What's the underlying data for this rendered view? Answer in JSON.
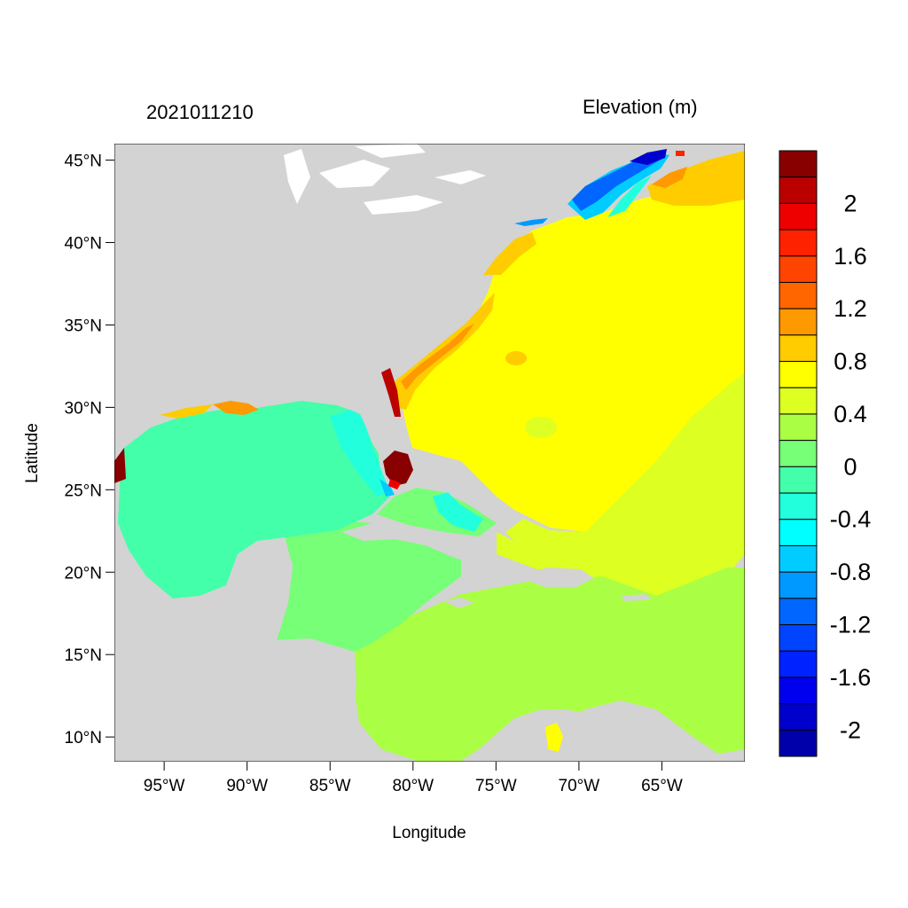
{
  "header": {
    "date_label": "2021011210",
    "variable_label": "Elevation (m)"
  },
  "map": {
    "xlabel": "Longitude",
    "ylabel": "Latitude",
    "lon_range": [
      -98,
      -60
    ],
    "lat_range": [
      8.5,
      46
    ],
    "lon_ticks": [
      {
        "value": -95,
        "label": "95°W"
      },
      {
        "value": -90,
        "label": "90°W"
      },
      {
        "value": -85,
        "label": "85°W"
      },
      {
        "value": -80,
        "label": "80°W"
      },
      {
        "value": -75,
        "label": "75°W"
      },
      {
        "value": -70,
        "label": "70°W"
      },
      {
        "value": -65,
        "label": "65°W"
      }
    ],
    "lat_ticks": [
      {
        "value": 45,
        "label": "45°N"
      },
      {
        "value": 40,
        "label": "40°N"
      },
      {
        "value": 35,
        "label": "35°N"
      },
      {
        "value": 30,
        "label": "30°N"
      },
      {
        "value": 25,
        "label": "25°N"
      },
      {
        "value": 20,
        "label": "20°N"
      },
      {
        "value": 15,
        "label": "15°N"
      },
      {
        "value": 10,
        "label": "10°N"
      }
    ],
    "land_color": "#d3d3d3"
  },
  "colorbar": {
    "bins": [
      {
        "min": 2.2,
        "max": 2.4,
        "color": "#880000"
      },
      {
        "min": 2.0,
        "max": 2.2,
        "color": "#bb0000"
      },
      {
        "min": 1.8,
        "max": 2.0,
        "color": "#ee0000"
      },
      {
        "min": 1.6,
        "max": 1.8,
        "color": "#ff2200"
      },
      {
        "min": 1.4,
        "max": 1.6,
        "color": "#ff4400"
      },
      {
        "min": 1.2,
        "max": 1.4,
        "color": "#ff6600"
      },
      {
        "min": 1.0,
        "max": 1.2,
        "color": "#ff9900"
      },
      {
        "min": 0.8,
        "max": 1.0,
        "color": "#ffcc00"
      },
      {
        "min": 0.6,
        "max": 0.8,
        "color": "#ffff00"
      },
      {
        "min": 0.4,
        "max": 0.6,
        "color": "#ddff22"
      },
      {
        "min": 0.2,
        "max": 0.4,
        "color": "#aaff44"
      },
      {
        "min": 0.0,
        "max": 0.2,
        "color": "#77ff77"
      },
      {
        "min": -0.2,
        "max": 0.0,
        "color": "#44ffaa"
      },
      {
        "min": -0.4,
        "max": -0.2,
        "color": "#22ffdd"
      },
      {
        "min": -0.6,
        "max": -0.4,
        "color": "#00ffff"
      },
      {
        "min": -0.8,
        "max": -0.6,
        "color": "#00ccff"
      },
      {
        "min": -1.0,
        "max": -0.8,
        "color": "#0099ff"
      },
      {
        "min": -1.2,
        "max": -1.0,
        "color": "#0066ff"
      },
      {
        "min": -1.4,
        "max": -1.2,
        "color": "#0044ff"
      },
      {
        "min": -1.6,
        "max": -1.4,
        "color": "#0022ff"
      },
      {
        "min": -1.8,
        "max": -1.6,
        "color": "#0000ee"
      },
      {
        "min": -2.0,
        "max": -1.8,
        "color": "#0000cc"
      },
      {
        "min": -2.2,
        "max": -2.0,
        "color": "#0000aa"
      }
    ],
    "labels": [
      {
        "value": 2.0,
        "label": "2"
      },
      {
        "value": 1.6,
        "label": "1.6"
      },
      {
        "value": 1.2,
        "label": "1.2"
      },
      {
        "value": 0.8,
        "label": "0.8"
      },
      {
        "value": 0.4,
        "label": "0.4"
      },
      {
        "value": 0.0,
        "label": "0"
      },
      {
        "value": -0.4,
        "label": "-0.4"
      },
      {
        "value": -0.8,
        "label": "-0.8"
      },
      {
        "value": -1.2,
        "label": "-1.2"
      },
      {
        "value": -1.6,
        "label": "-1.6"
      },
      {
        "value": -2.0,
        "label": "-2"
      }
    ]
  }
}
